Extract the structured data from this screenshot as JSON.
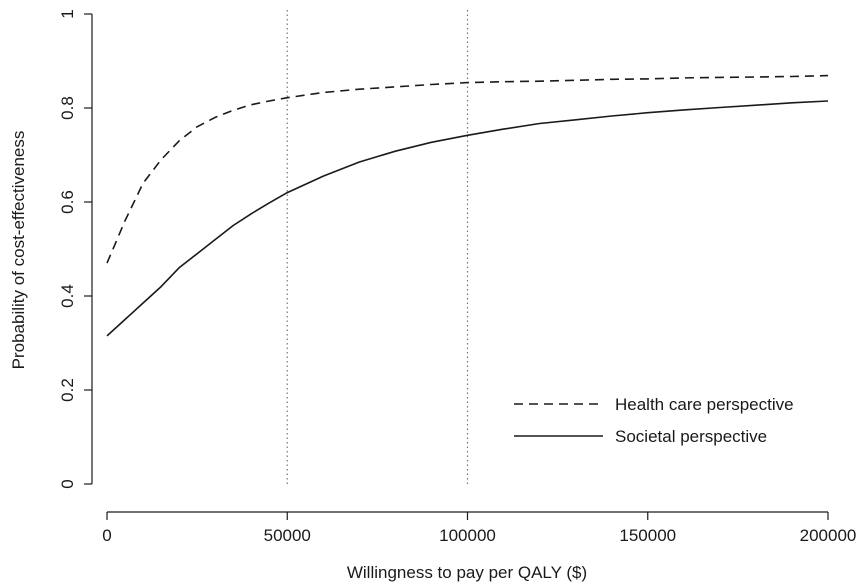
{
  "chart_data": {
    "type": "line",
    "xlabel": "Willingness to pay per QALY ($)",
    "ylabel": "Probability of cost-effectiveness",
    "xlim": [
      0,
      200000
    ],
    "ylim": [
      0,
      1
    ],
    "x_ticks": [
      0,
      50000,
      100000,
      150000,
      200000
    ],
    "x_tick_labels": [
      "0",
      "50000",
      "100000",
      "150000",
      "200000"
    ],
    "y_ticks": [
      0,
      0.2,
      0.4,
      0.6,
      0.8,
      1
    ],
    "y_tick_labels": [
      "0",
      "0.2",
      "0.4",
      "0.6",
      "0.8",
      "1"
    ],
    "grid": false,
    "reference_lines_x": [
      50000,
      100000
    ],
    "legend_position": "bottom-right",
    "series": [
      {
        "name": "Health care perspective",
        "line_style": "dashed",
        "color": "#1a1a1a",
        "x": [
          0,
          5000,
          10000,
          15000,
          20000,
          25000,
          30000,
          35000,
          40000,
          45000,
          50000,
          60000,
          70000,
          80000,
          90000,
          100000,
          110000,
          120000,
          130000,
          140000,
          150000,
          160000,
          170000,
          180000,
          190000,
          200000
        ],
        "y": [
          0.47,
          0.56,
          0.64,
          0.69,
          0.73,
          0.76,
          0.78,
          0.795,
          0.807,
          0.815,
          0.822,
          0.833,
          0.84,
          0.845,
          0.85,
          0.854,
          0.856,
          0.857,
          0.859,
          0.861,
          0.862,
          0.864,
          0.865,
          0.866,
          0.867,
          0.869
        ]
      },
      {
        "name": "Societal perspective",
        "line_style": "solid",
        "color": "#1a1a1a",
        "x": [
          0,
          5000,
          10000,
          15000,
          20000,
          25000,
          30000,
          35000,
          40000,
          45000,
          50000,
          60000,
          70000,
          80000,
          90000,
          100000,
          110000,
          120000,
          130000,
          140000,
          150000,
          160000,
          170000,
          180000,
          190000,
          200000
        ],
        "y": [
          0.315,
          0.35,
          0.385,
          0.42,
          0.46,
          0.49,
          0.52,
          0.55,
          0.575,
          0.598,
          0.62,
          0.655,
          0.685,
          0.708,
          0.727,
          0.742,
          0.755,
          0.767,
          0.775,
          0.783,
          0.79,
          0.796,
          0.801,
          0.806,
          0.811,
          0.815
        ]
      }
    ]
  }
}
